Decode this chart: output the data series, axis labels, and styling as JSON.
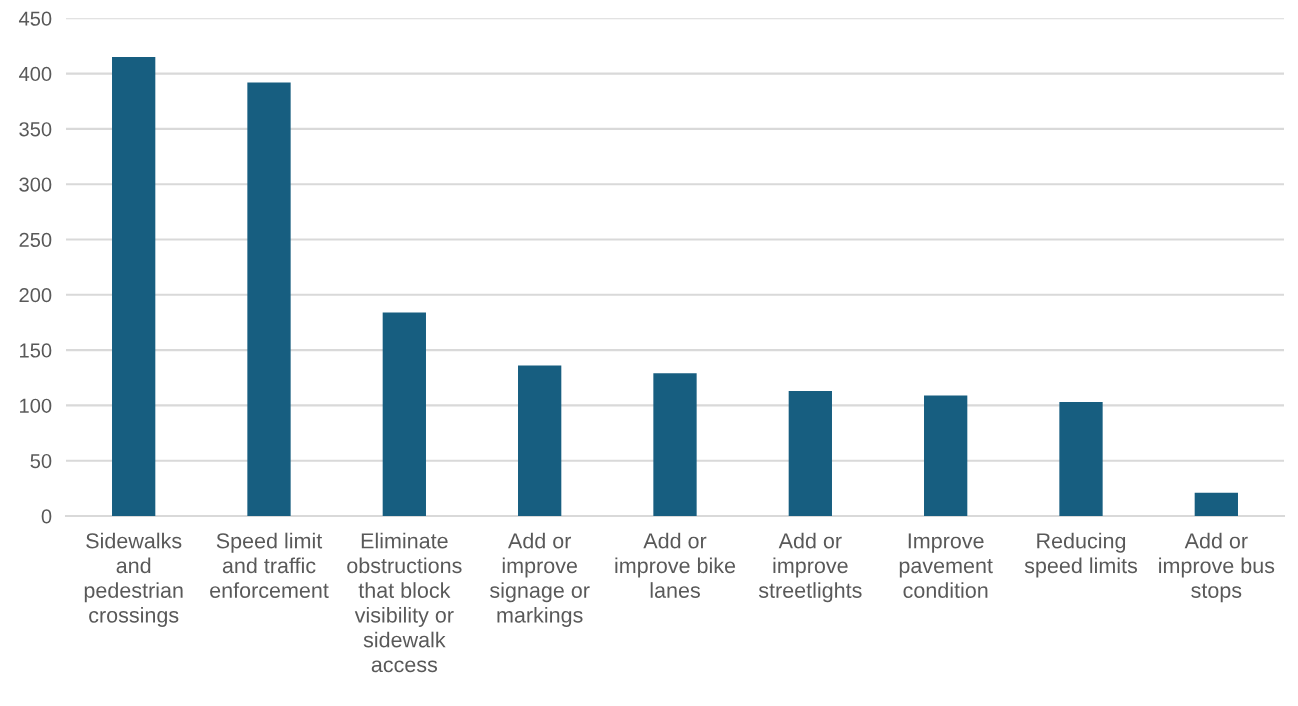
{
  "chart_data": {
    "type": "bar",
    "categories": [
      "Sidewalks\nand\npedestrian\ncrossings",
      "Speed limit\nand traffic\nenforcement",
      "Eliminate\nobstructions\nthat block\nvisibility or\nsidewalk\naccess",
      "Add or\nimprove\nsignage or\nmarkings",
      "Add or\nimprove bike\nlanes",
      "Add or\nimprove\nstreetlights",
      "Improve\npavement\ncondition",
      "Reducing\nspeed limits",
      "Add or\nimprove bus\nstops"
    ],
    "values": [
      415,
      392,
      184,
      136,
      129,
      113,
      109,
      103,
      21
    ],
    "color": "#175e80",
    "ylim": [
      0,
      450
    ],
    "yticks": [
      0,
      50,
      100,
      150,
      200,
      250,
      300,
      350,
      400,
      450
    ],
    "grid": "y"
  }
}
